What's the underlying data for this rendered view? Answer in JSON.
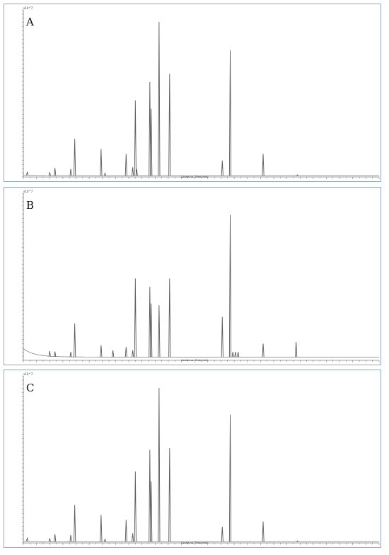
{
  "x_axis_title": "Counts vs. Time (min)",
  "y_scale_label": "x10^7",
  "chart_data": [
    {
      "type": "line",
      "title": "A",
      "xlabel": "Counts vs. Time (min)",
      "ylabel": "",
      "xlim": [
        3.0,
        30.0
      ],
      "ylim": [
        0,
        1.0
      ],
      "grid": false,
      "peaks": [
        {
          "x": 3.3,
          "y": 0.02
        },
        {
          "x": 5.0,
          "y": 0.02
        },
        {
          "x": 5.4,
          "y": 0.045
        },
        {
          "x": 6.6,
          "y": 0.04
        },
        {
          "x": 6.9,
          "y": 0.22
        },
        {
          "x": 8.9,
          "y": 0.16
        },
        {
          "x": 9.2,
          "y": 0.015
        },
        {
          "x": 10.8,
          "y": 0.13
        },
        {
          "x": 11.3,
          "y": 0.05
        },
        {
          "x": 11.5,
          "y": 0.45
        },
        {
          "x": 11.6,
          "y": 0.04
        },
        {
          "x": 12.6,
          "y": 0.56
        },
        {
          "x": 12.7,
          "y": 0.4
        },
        {
          "x": 13.3,
          "y": 0.92
        },
        {
          "x": 14.1,
          "y": 0.61
        },
        {
          "x": 18.1,
          "y": 0.09
        },
        {
          "x": 18.7,
          "y": 0.75
        },
        {
          "x": 21.2,
          "y": 0.13
        },
        {
          "x": 23.8,
          "y": 0.005
        }
      ],
      "baseline": {
        "start": 0.012,
        "decay": 0.008
      }
    },
    {
      "type": "line",
      "title": "B",
      "xlabel": "Counts vs. Time (min)",
      "ylabel": "",
      "xlim": [
        3.0,
        30.0
      ],
      "ylim": [
        0,
        1.0
      ],
      "grid": false,
      "peaks": [
        {
          "x": 5.0,
          "y": 0.03
        },
        {
          "x": 5.4,
          "y": 0.03
        },
        {
          "x": 6.6,
          "y": 0.03
        },
        {
          "x": 6.9,
          "y": 0.2
        },
        {
          "x": 8.9,
          "y": 0.07
        },
        {
          "x": 9.8,
          "y": 0.04
        },
        {
          "x": 10.8,
          "y": 0.06
        },
        {
          "x": 11.3,
          "y": 0.04
        },
        {
          "x": 11.5,
          "y": 0.47
        },
        {
          "x": 12.6,
          "y": 0.42
        },
        {
          "x": 12.7,
          "y": 0.32
        },
        {
          "x": 13.3,
          "y": 0.31
        },
        {
          "x": 14.1,
          "y": 0.47
        },
        {
          "x": 18.1,
          "y": 0.24
        },
        {
          "x": 18.7,
          "y": 0.85
        },
        {
          "x": 18.9,
          "y": 0.03
        },
        {
          "x": 19.1,
          "y": 0.03
        },
        {
          "x": 19.3,
          "y": 0.03
        },
        {
          "x": 21.2,
          "y": 0.08
        },
        {
          "x": 23.7,
          "y": 0.09
        }
      ],
      "baseline": {
        "start": 0.07,
        "decay": 0.02
      }
    },
    {
      "type": "line",
      "title": "C",
      "xlabel": "Counts vs. Time (min)",
      "ylabel": "",
      "xlim": [
        3.0,
        30.0
      ],
      "ylim": [
        0,
        1.0
      ],
      "grid": false,
      "peaks": [
        {
          "x": 3.3,
          "y": 0.02
        },
        {
          "x": 5.0,
          "y": 0.02
        },
        {
          "x": 5.4,
          "y": 0.045
        },
        {
          "x": 6.6,
          "y": 0.04
        },
        {
          "x": 6.9,
          "y": 0.22
        },
        {
          "x": 8.9,
          "y": 0.16
        },
        {
          "x": 9.2,
          "y": 0.015
        },
        {
          "x": 10.8,
          "y": 0.13
        },
        {
          "x": 11.3,
          "y": 0.05
        },
        {
          "x": 11.5,
          "y": 0.42
        },
        {
          "x": 12.6,
          "y": 0.55
        },
        {
          "x": 12.7,
          "y": 0.36
        },
        {
          "x": 13.3,
          "y": 0.92
        },
        {
          "x": 14.1,
          "y": 0.56
        },
        {
          "x": 18.1,
          "y": 0.09
        },
        {
          "x": 18.7,
          "y": 0.76
        },
        {
          "x": 21.2,
          "y": 0.12
        },
        {
          "x": 23.8,
          "y": 0.005
        }
      ],
      "baseline": {
        "start": 0.012,
        "decay": 0.008
      }
    }
  ],
  "colors": {
    "trace": "#5a5a5a",
    "axis": "#444444",
    "frame": "#8fa8c8"
  }
}
